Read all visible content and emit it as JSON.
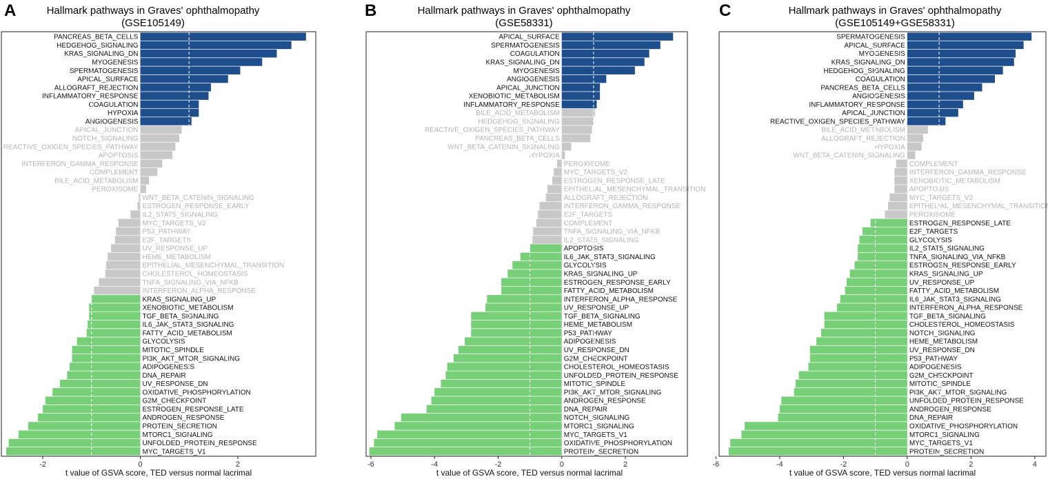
{
  "figure": {
    "colors": {
      "up": "#1f4e8c",
      "down": "#77cf77",
      "insig_bar": "#c8c8c8",
      "insig_label": "#b4b4b4",
      "sig_label": "#111111",
      "dashed_line": "#ffffff"
    }
  },
  "chart_data": [
    {
      "type": "bar",
      "orientation": "horizontal",
      "panel_label": "A",
      "title": "Hallmark pathways in Graves' ophthalmopathy",
      "subtitle": "(GSE105149)",
      "xlabel": "t value of GSVA score, TED versus normal lacrimal",
      "xlim": [
        -2.85,
        3.6
      ],
      "xticks": [
        -2,
        0,
        2
      ],
      "reference_line": -1,
      "reference_line_upper": 1,
      "bars": [
        {
          "name": "PANCREAS_BETA_CELLS",
          "value": 3.4,
          "status": "up"
        },
        {
          "name": "HEDGEHOG_SIGNALING",
          "value": 3.1,
          "status": "up"
        },
        {
          "name": "KRAS_SIGNALING_DN",
          "value": 2.8,
          "status": "up"
        },
        {
          "name": "MYOGENESIS",
          "value": 2.5,
          "status": "up"
        },
        {
          "name": "SPERMATOGENESIS",
          "value": 2.05,
          "status": "up"
        },
        {
          "name": "APICAL_SURFACE",
          "value": 1.8,
          "status": "up"
        },
        {
          "name": "ALLOGRAFT_REJECTION",
          "value": 1.45,
          "status": "up"
        },
        {
          "name": "INFLAMMATORY_RESPONSE",
          "value": 1.4,
          "status": "up"
        },
        {
          "name": "COAGULATION",
          "value": 1.2,
          "status": "up"
        },
        {
          "name": "HYPOXIA",
          "value": 1.2,
          "status": "up"
        },
        {
          "name": "ANGIOGENESIS",
          "value": 1.05,
          "status": "up"
        },
        {
          "name": "APICAL_JUNCTION",
          "value": 0.85,
          "status": "ns"
        },
        {
          "name": "NOTCH_SIGNALING",
          "value": 0.8,
          "status": "ns"
        },
        {
          "name": "REACTIVE_OXIGEN_SPECIES_PATHWAY",
          "value": 0.72,
          "status": "ns"
        },
        {
          "name": "APOPTOSIS",
          "value": 0.66,
          "status": "ns"
        },
        {
          "name": "INTERFERON_GAMMA_RESPONSE",
          "value": 0.45,
          "status": "ns"
        },
        {
          "name": "COMPLEMENT",
          "value": 0.35,
          "status": "ns"
        },
        {
          "name": "BILE_ACID_METABOLISM",
          "value": 0.18,
          "status": "ns"
        },
        {
          "name": "PEROXISOME",
          "value": 0.12,
          "status": "ns"
        },
        {
          "name": "WNT_BETA_CATENIN_SIGNALING",
          "value": -0.03,
          "status": "ns"
        },
        {
          "name": "ESTROGEN_RESPONSE_EARLY",
          "value": -0.06,
          "status": "ns"
        },
        {
          "name": "IL2_STAT5_SIGNALING",
          "value": -0.2,
          "status": "ns"
        },
        {
          "name": "MYC_TARGETS_V2",
          "value": -0.45,
          "status": "ns"
        },
        {
          "name": "P53_PATHWAY",
          "value": -0.5,
          "status": "ns"
        },
        {
          "name": "E2F_TARGETS",
          "value": -0.52,
          "status": "ns"
        },
        {
          "name": "UV_RESPONSE_UP",
          "value": -0.6,
          "status": "ns"
        },
        {
          "name": "HEME_METABOLISM",
          "value": -0.67,
          "status": "ns"
        },
        {
          "name": "EPITHELIAL_MESENCHYMAL_TRANSITION",
          "value": -0.7,
          "status": "ns"
        },
        {
          "name": "CHOLESTEROL_HOMEOSTASIS",
          "value": -0.72,
          "status": "ns"
        },
        {
          "name": "TNFA_SIGNALING_VIA_NFKB",
          "value": -0.85,
          "status": "ns"
        },
        {
          "name": "INTERFERON_ALPHA_RESPONSE",
          "value": -0.95,
          "status": "ns"
        },
        {
          "name": "KRAS_SIGNALING_UP",
          "value": -1.0,
          "status": "down"
        },
        {
          "name": "XENOBIOTIC_METABOLISM",
          "value": -1.05,
          "status": "down"
        },
        {
          "name": "TGF_BETA_SIGNALING",
          "value": -1.05,
          "status": "down"
        },
        {
          "name": "IL6_JAK_STAT3_SIGNALING",
          "value": -1.08,
          "status": "down"
        },
        {
          "name": "FATTY_ACID_METABOLISM",
          "value": -1.1,
          "status": "down"
        },
        {
          "name": "GLYCOLYSIS",
          "value": -1.3,
          "status": "down"
        },
        {
          "name": "MITOTIC_SPINDLE",
          "value": -1.4,
          "status": "down"
        },
        {
          "name": "PI3K_AKT_MTOR_SIGNALING",
          "value": -1.4,
          "status": "down"
        },
        {
          "name": "ADIPOGENESIS",
          "value": -1.45,
          "status": "down"
        },
        {
          "name": "DNA_REPAIR",
          "value": -1.5,
          "status": "down"
        },
        {
          "name": "UV_RESPONSE_DN",
          "value": -1.65,
          "status": "down"
        },
        {
          "name": "OXIDATIVE_PHOSPHORYLATION",
          "value": -1.8,
          "status": "down"
        },
        {
          "name": "G2M_CHECKPOINT",
          "value": -1.95,
          "status": "down"
        },
        {
          "name": "ESTROGEN_RESPONSE_LATE",
          "value": -2.0,
          "status": "down"
        },
        {
          "name": "ANDROGEN_RESPONSE",
          "value": -2.1,
          "status": "down"
        },
        {
          "name": "PROTEIN_SECRETION",
          "value": -2.3,
          "status": "down"
        },
        {
          "name": "MTORC1_SIGNALING",
          "value": -2.5,
          "status": "down"
        },
        {
          "name": "UNFOLDED_PROTEIN_RESPONSE",
          "value": -2.7,
          "status": "down"
        },
        {
          "name": "MYC_TARGETS_V1",
          "value": -2.75,
          "status": "down"
        }
      ]
    },
    {
      "type": "bar",
      "orientation": "horizontal",
      "panel_label": "B",
      "title": "Hallmark pathways in Graves' ophthalmopathy",
      "subtitle": "(GSE58331)",
      "xlabel": "t value of GSVA score, TED versus normal lacrimal",
      "xlim": [
        -6.15,
        3.95
      ],
      "xticks": [
        -6,
        -4,
        -2,
        0,
        2
      ],
      "reference_line": -1,
      "reference_line_upper": 1,
      "bars": [
        {
          "name": "APICAL_SURFACE",
          "value": 3.5,
          "status": "up"
        },
        {
          "name": "SPERMATOGENESIS",
          "value": 3.1,
          "status": "up"
        },
        {
          "name": "COAGULATION",
          "value": 2.75,
          "status": "up"
        },
        {
          "name": "KRAS_SIGNALING_DN",
          "value": 2.6,
          "status": "up"
        },
        {
          "name": "MYOGENESIS",
          "value": 2.3,
          "status": "up"
        },
        {
          "name": "ANGIOGENESIS",
          "value": 1.4,
          "status": "up"
        },
        {
          "name": "APICAL_JUNCTION",
          "value": 1.2,
          "status": "up"
        },
        {
          "name": "XENOBIOTIC_METABOLISM",
          "value": 1.2,
          "status": "up"
        },
        {
          "name": "INFLAMMATORY_RESPONSE",
          "value": 1.1,
          "status": "up"
        },
        {
          "name": "BILE_ACID_METABOLISM",
          "value": 1.05,
          "status": "ns"
        },
        {
          "name": "HEDGEHOG_SIGNALING",
          "value": 1.0,
          "status": "ns"
        },
        {
          "name": "REACTIVE_OXIGEN_SPECIES_PATHWAY",
          "value": 0.95,
          "status": "ns"
        },
        {
          "name": "PANCREAS_BETA_CELLS",
          "value": 0.9,
          "status": "ns"
        },
        {
          "name": "WNT_BETA_CATENIN_SIGNALING",
          "value": 0.3,
          "status": "ns"
        },
        {
          "name": "HYPOXIA",
          "value": 0.1,
          "status": "ns"
        },
        {
          "name": "PEROXISOME",
          "value": -0.15,
          "status": "ns"
        },
        {
          "name": "MYC_TARGETS_V2",
          "value": -0.25,
          "status": "ns"
        },
        {
          "name": "ESTROGEN_RESPONSE_LATE",
          "value": -0.3,
          "status": "ns"
        },
        {
          "name": "EPITHELIAL_MESENCHYMAL_TRANSITION",
          "value": -0.45,
          "status": "ns"
        },
        {
          "name": "ALLOGRAFT_REJECTION",
          "value": -0.5,
          "status": "ns"
        },
        {
          "name": "INTERFERON_GAMMA_RESPONSE",
          "value": -0.7,
          "status": "ns"
        },
        {
          "name": "E2F_TARGETS",
          "value": -0.75,
          "status": "ns"
        },
        {
          "name": "COMPLEMENT",
          "value": -0.8,
          "status": "ns"
        },
        {
          "name": "TNFA_SIGNALING_VIA_NFKB",
          "value": -0.9,
          "status": "ns"
        },
        {
          "name": "IL2_STAT5_SIGNALING",
          "value": -0.92,
          "status": "ns"
        },
        {
          "name": "APOPTOSIS",
          "value": -1.0,
          "status": "down"
        },
        {
          "name": "IL6_JAK_STAT3_SIGNALING",
          "value": -1.3,
          "status": "down"
        },
        {
          "name": "GLYCOLYSIS",
          "value": -1.55,
          "status": "down"
        },
        {
          "name": "KRAS_SIGNALING_UP",
          "value": -1.7,
          "status": "down"
        },
        {
          "name": "ESTROGEN_RESPONSE_EARLY",
          "value": -1.9,
          "status": "down"
        },
        {
          "name": "FATTY_ACID_METABOLISM",
          "value": -1.9,
          "status": "down"
        },
        {
          "name": "INTERFERON_ALPHA_RESPONSE",
          "value": -2.35,
          "status": "down"
        },
        {
          "name": "UV_RESPONSE_UP",
          "value": -2.4,
          "status": "down"
        },
        {
          "name": "TGF_BETA_SIGNALING",
          "value": -2.85,
          "status": "down"
        },
        {
          "name": "HEME_METABOLISM",
          "value": -2.85,
          "status": "down"
        },
        {
          "name": "P53_PATHWAY",
          "value": -2.85,
          "status": "down"
        },
        {
          "name": "ADIPOGENESIS",
          "value": -3.05,
          "status": "down"
        },
        {
          "name": "UV_RESPONSE_DN",
          "value": -3.25,
          "status": "down"
        },
        {
          "name": "G2M_CHECKPOINT",
          "value": -3.4,
          "status": "down"
        },
        {
          "name": "CHOLESTEROL_HOMEOSTASIS",
          "value": -3.6,
          "status": "down"
        },
        {
          "name": "UNFOLDED_PROTEIN_RESPONSE",
          "value": -3.65,
          "status": "down"
        },
        {
          "name": "MITOTIC_SPINDLE",
          "value": -3.8,
          "status": "down"
        },
        {
          "name": "PI3K_AKT_MTOR_SIGNALING",
          "value": -4.0,
          "status": "down"
        },
        {
          "name": "ANDROGEN_RESPONSE",
          "value": -4.1,
          "status": "down"
        },
        {
          "name": "DNA_REPAIR",
          "value": -4.25,
          "status": "down"
        },
        {
          "name": "NOTCH_SIGNALING",
          "value": -5.05,
          "status": "down"
        },
        {
          "name": "MTORC1_SIGNALING",
          "value": -5.25,
          "status": "down"
        },
        {
          "name": "MYC_TARGETS_V1",
          "value": -5.8,
          "status": "down"
        },
        {
          "name": "OXIDATIVE_PHOSPHORYLATION",
          "value": -5.9,
          "status": "down"
        },
        {
          "name": "PROTEIN_SECRETION",
          "value": -6.05,
          "status": "down"
        }
      ]
    },
    {
      "type": "bar",
      "orientation": "horizontal",
      "panel_label": "C",
      "title": "Hallmark pathways in Graves' ophthalmopathy",
      "subtitle": "(GSE105149+GSE58331)",
      "xlabel": "t value of GSVA score, TED versus normal lacrimal",
      "xlim": [
        -5.9,
        4.35
      ],
      "xticks": [
        -6,
        -4,
        -2,
        0,
        2,
        4
      ],
      "reference_line": -1,
      "reference_line_upper": 1,
      "bars": [
        {
          "name": "SPERMATOGENESIS",
          "value": 3.9,
          "status": "up"
        },
        {
          "name": "APICAL_SURFACE",
          "value": 3.65,
          "status": "up"
        },
        {
          "name": "MYOGENESIS",
          "value": 3.4,
          "status": "up"
        },
        {
          "name": "KRAS_SIGNALING_DN",
          "value": 3.35,
          "status": "up"
        },
        {
          "name": "HEDGEHOG_SIGNALING",
          "value": 3.0,
          "status": "up"
        },
        {
          "name": "COAGULATION",
          "value": 2.75,
          "status": "up"
        },
        {
          "name": "PANCREAS_BETA_CELLS",
          "value": 2.35,
          "status": "up"
        },
        {
          "name": "ANGIOGENESIS",
          "value": 2.1,
          "status": "up"
        },
        {
          "name": "INFLAMMATORY_RESPONSE",
          "value": 1.75,
          "status": "up"
        },
        {
          "name": "APICAL_JUNCTION",
          "value": 1.6,
          "status": "up"
        },
        {
          "name": "REACTIVE_OXIGEN_SPECIES_PATHWAY",
          "value": 1.2,
          "status": "up"
        },
        {
          "name": "BILE_ACID_METABOLISM",
          "value": 0.65,
          "status": "ns"
        },
        {
          "name": "ALLOGRAFT_REJECTION",
          "value": 0.5,
          "status": "ns"
        },
        {
          "name": "HYPOXIA",
          "value": 0.45,
          "status": "ns"
        },
        {
          "name": "WNT_BETA_CATENIN_SIGNALING",
          "value": 0.25,
          "status": "ns"
        },
        {
          "name": "COMPLEMENT",
          "value": -0.35,
          "status": "ns"
        },
        {
          "name": "INTERFERON_GAMMA_RESPONSE",
          "value": -0.4,
          "status": "ns"
        },
        {
          "name": "XENOBIOTIC_METABOLISM",
          "value": -0.4,
          "status": "ns"
        },
        {
          "name": "APOPTOSIS",
          "value": -0.4,
          "status": "ns"
        },
        {
          "name": "MYC_TARGETS_V2",
          "value": -0.55,
          "status": "ns"
        },
        {
          "name": "EPITHELIAL_MESENCHYMAL_TRANSITION",
          "value": -0.6,
          "status": "ns"
        },
        {
          "name": "PEROXISOME",
          "value": -0.7,
          "status": "ns"
        },
        {
          "name": "ESTROGEN_RESPONSE_LATE",
          "value": -1.15,
          "status": "down"
        },
        {
          "name": "E2F_TARGETS",
          "value": -1.4,
          "status": "down"
        },
        {
          "name": "GLYCOLYSIS",
          "value": -1.5,
          "status": "down"
        },
        {
          "name": "IL2_STAT5_SIGNALING",
          "value": -1.55,
          "status": "down"
        },
        {
          "name": "TNFA_SIGNALING_VIA_NFKB",
          "value": -1.55,
          "status": "down"
        },
        {
          "name": "ESTROGEN_RESPONSE_EARLY",
          "value": -1.65,
          "status": "down"
        },
        {
          "name": "KRAS_SIGNALING_UP",
          "value": -1.8,
          "status": "down"
        },
        {
          "name": "UV_RESPONSE_UP",
          "value": -1.9,
          "status": "down"
        },
        {
          "name": "FATTY_ACID_METABOLISM",
          "value": -1.95,
          "status": "down"
        },
        {
          "name": "IL6_JAK_STAT3_SIGNALING",
          "value": -2.1,
          "status": "down"
        },
        {
          "name": "INTERFERON_ALPHA_RESPONSE",
          "value": -2.2,
          "status": "down"
        },
        {
          "name": "TGF_BETA_SIGNALING",
          "value": -2.6,
          "status": "down"
        },
        {
          "name": "CHOLESTEROL_HOMEOSTASIS",
          "value": -2.6,
          "status": "down"
        },
        {
          "name": "NOTCH_SIGNALING",
          "value": -2.7,
          "status": "down"
        },
        {
          "name": "HEME_METABOLISM",
          "value": -2.85,
          "status": "down"
        },
        {
          "name": "UV_RESPONSE_DN",
          "value": -3.05,
          "status": "down"
        },
        {
          "name": "P53_PATHWAY",
          "value": -3.05,
          "status": "down"
        },
        {
          "name": "ADIPOGENESIS",
          "value": -3.1,
          "status": "down"
        },
        {
          "name": "G2M_CHECKPOINT",
          "value": -3.4,
          "status": "down"
        },
        {
          "name": "MITOTIC_SPINDLE",
          "value": -3.5,
          "status": "down"
        },
        {
          "name": "PI3K_AKT_MTOR_SIGNALING",
          "value": -3.55,
          "status": "down"
        },
        {
          "name": "UNFOLDED_PROTEIN_RESPONSE",
          "value": -3.95,
          "status": "down"
        },
        {
          "name": "ANDROGEN_RESPONSE",
          "value": -4.0,
          "status": "down"
        },
        {
          "name": "DNA_REPAIR",
          "value": -4.05,
          "status": "down"
        },
        {
          "name": "OXIDATIVE_PHOSPHORYLATION",
          "value": -5.1,
          "status": "down"
        },
        {
          "name": "MTORC1_SIGNALING",
          "value": -5.2,
          "status": "down"
        },
        {
          "name": "MYC_TARGETS_V1",
          "value": -5.55,
          "status": "down"
        },
        {
          "name": "PROTEIN_SECRETION",
          "value": -5.6,
          "status": "down"
        }
      ]
    }
  ]
}
